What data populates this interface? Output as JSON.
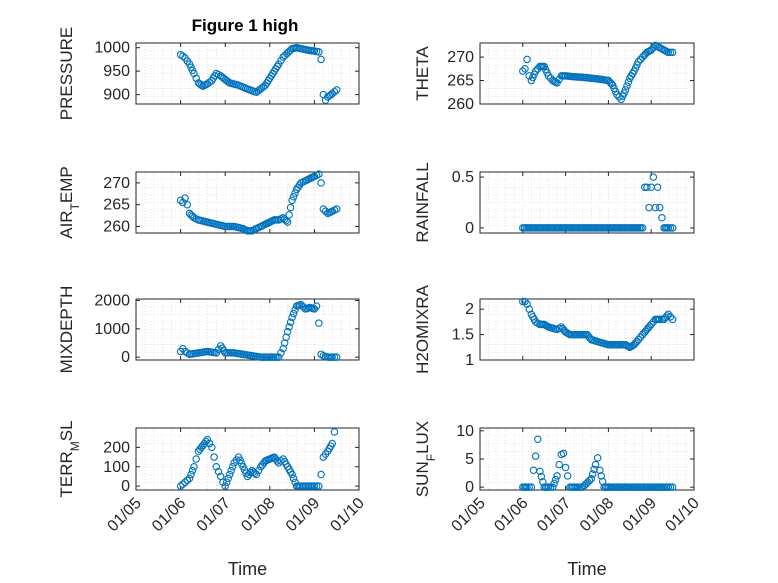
{
  "figure_title": "Figure 1 high",
  "chart_data": [
    {
      "type": "scatter",
      "ylabel": "PRESSURE",
      "xlim": [
        0,
        5
      ],
      "ylim": [
        880,
        1010
      ],
      "yticks": [
        900,
        950,
        1000
      ],
      "ytick_labels": [
        "900",
        "950",
        "1000"
      ],
      "show_xticks": false,
      "series": [
        {
          "x": [
            1.0,
            1.05,
            1.1,
            1.2,
            1.3,
            1.4,
            1.5,
            1.6,
            1.7,
            1.8,
            1.9,
            2.0,
            2.1,
            2.3,
            2.5,
            2.7,
            2.9,
            3.0,
            3.1,
            3.2,
            3.3,
            3.5,
            3.6,
            3.7,
            3.8,
            3.9,
            4.0,
            4.1,
            4.15,
            4.2,
            4.25,
            4.3,
            4.4,
            4.5
          ],
          "y": [
            985,
            982,
            978,
            965,
            945,
            925,
            918,
            923,
            930,
            945,
            940,
            932,
            925,
            920,
            912,
            905,
            920,
            935,
            950,
            965,
            980,
            998,
            1000,
            998,
            996,
            994,
            993,
            991,
            975,
            900,
            888,
            895,
            902,
            910
          ]
        }
      ]
    },
    {
      "type": "scatter",
      "ylabel": "THETA",
      "xlim": [
        0,
        5
      ],
      "ylim": [
        260,
        273
      ],
      "yticks": [
        260,
        265,
        270
      ],
      "ytick_labels": [
        "260",
        "265",
        "270"
      ],
      "show_xticks": false,
      "series": [
        {
          "x": [
            1.0,
            1.05,
            1.1,
            1.15,
            1.2,
            1.3,
            1.4,
            1.5,
            1.6,
            1.7,
            1.8,
            1.9,
            2.0,
            2.2,
            2.4,
            2.6,
            2.8,
            3.0,
            3.1,
            3.2,
            3.3,
            3.4,
            3.5,
            3.6,
            3.7,
            3.8,
            3.9,
            4.0,
            4.1,
            4.2,
            4.3,
            4.4,
            4.5
          ],
          "y": [
            267,
            267.5,
            269.5,
            266,
            265,
            267,
            268,
            268,
            266,
            265,
            264.5,
            266,
            266,
            265.8,
            265.7,
            265.5,
            265.3,
            265,
            264,
            262,
            261,
            263,
            265.5,
            267,
            269,
            270,
            271,
            271.5,
            272.5,
            272,
            271.5,
            271,
            271
          ]
        }
      ]
    },
    {
      "type": "scatter",
      "ylabel": "AIR_TEMP",
      "xlim": [
        0,
        5
      ],
      "ylim": [
        258.5,
        272.5
      ],
      "yticks": [
        260,
        265,
        270
      ],
      "ytick_labels": [
        "260",
        "265",
        "270"
      ],
      "show_xticks": false,
      "series": [
        {
          "x": [
            1.0,
            1.05,
            1.1,
            1.15,
            1.2,
            1.3,
            1.4,
            1.6,
            1.8,
            2.0,
            2.2,
            2.4,
            2.5,
            2.6,
            2.7,
            2.8,
            2.9,
            3.0,
            3.1,
            3.2,
            3.3,
            3.4,
            3.5,
            3.6,
            3.7,
            3.8,
            3.9,
            4.0,
            4.1,
            4.15,
            4.2,
            4.3,
            4.4,
            4.5
          ],
          "y": [
            266,
            265.5,
            266.5,
            265,
            263,
            262,
            261.5,
            261,
            260.5,
            260,
            260,
            259.5,
            259,
            259,
            259.5,
            260,
            260.5,
            261,
            261.5,
            261.5,
            262,
            261,
            266,
            268.5,
            270,
            270.5,
            271,
            271.5,
            272,
            270,
            264,
            263,
            263.5,
            264
          ]
        }
      ]
    },
    {
      "type": "scatter",
      "ylabel": "RAINFALL",
      "xlim": [
        0,
        5
      ],
      "ylim": [
        -0.05,
        0.55
      ],
      "yticks": [
        0,
        0.5
      ],
      "ytick_labels": [
        "0",
        "0.5"
      ],
      "show_xticks": false,
      "series": [
        {
          "x": [
            1.0,
            1.2,
            1.4,
            1.6,
            1.8,
            2.0,
            2.2,
            2.4,
            2.6,
            2.8,
            3.0,
            3.2,
            3.4,
            3.6,
            3.8,
            3.85,
            3.9,
            3.95,
            4.0,
            4.05,
            4.1,
            4.15,
            4.2,
            4.3,
            4.4,
            4.5
          ],
          "y": [
            0,
            0,
            0,
            0,
            0,
            0,
            0,
            0,
            0,
            0,
            0,
            0,
            0,
            0,
            0,
            0.4,
            0.4,
            0.2,
            0.4,
            0.5,
            0.2,
            0.4,
            0.2,
            0,
            0,
            0
          ]
        }
      ]
    },
    {
      "type": "scatter",
      "ylabel": "MIXDEPTH",
      "xlim": [
        0,
        5
      ],
      "ylim": [
        -100,
        2050
      ],
      "yticks": [
        0,
        1000,
        2000
      ],
      "ytick_labels": [
        "0",
        "1000",
        "2000"
      ],
      "show_xticks": false,
      "series": [
        {
          "x": [
            1.0,
            1.05,
            1.1,
            1.2,
            1.4,
            1.6,
            1.8,
            1.9,
            2.0,
            2.2,
            2.4,
            2.6,
            2.8,
            3.0,
            3.2,
            3.3,
            3.4,
            3.5,
            3.6,
            3.7,
            3.8,
            3.9,
            4.0,
            4.05,
            4.1,
            4.15,
            4.2,
            4.3,
            4.4,
            4.5
          ],
          "y": [
            200,
            300,
            200,
            100,
            150,
            200,
            150,
            400,
            150,
            150,
            100,
            50,
            0,
            0,
            0,
            300,
            900,
            1400,
            1800,
            1850,
            1700,
            1750,
            1700,
            1800,
            1200,
            100,
            50,
            0,
            0,
            0
          ]
        }
      ]
    },
    {
      "type": "scatter",
      "ylabel": "H2OMIXRA",
      "xlim": [
        0,
        5
      ],
      "ylim": [
        1,
        2.2
      ],
      "yticks": [
        1,
        1.5,
        2
      ],
      "ytick_labels": [
        "1",
        "1.5",
        "2"
      ],
      "show_xticks": false,
      "series": [
        {
          "x": [
            1.0,
            1.05,
            1.1,
            1.2,
            1.3,
            1.4,
            1.5,
            1.6,
            1.8,
            1.9,
            2.0,
            2.1,
            2.3,
            2.5,
            2.6,
            2.8,
            3.0,
            3.2,
            3.4,
            3.5,
            3.6,
            3.7,
            3.8,
            3.9,
            4.0,
            4.1,
            4.2,
            4.3,
            4.4,
            4.5
          ],
          "y": [
            2.15,
            2.15,
            2.1,
            1.9,
            1.75,
            1.7,
            1.7,
            1.65,
            1.6,
            1.65,
            1.55,
            1.5,
            1.5,
            1.5,
            1.4,
            1.35,
            1.3,
            1.3,
            1.3,
            1.25,
            1.3,
            1.4,
            1.5,
            1.6,
            1.7,
            1.8,
            1.8,
            1.8,
            1.9,
            1.8
          ]
        }
      ]
    },
    {
      "type": "scatter",
      "ylabel": "TERR_MSL",
      "xlim": [
        0,
        5
      ],
      "ylim": [
        -20,
        300
      ],
      "yticks": [
        0,
        100,
        200
      ],
      "ytick_labels": [
        "0",
        "100",
        "200"
      ],
      "show_xticks": true,
      "xticks": [
        0,
        1,
        2,
        3,
        4,
        5
      ],
      "xtick_labels": [
        "01/05",
        "01/06",
        "01/07",
        "01/08",
        "01/09",
        "01/10"
      ],
      "xlabel": "Time",
      "series": [
        {
          "x": [
            1.0,
            1.05,
            1.1,
            1.2,
            1.3,
            1.35,
            1.4,
            1.5,
            1.6,
            1.7,
            1.75,
            1.8,
            1.9,
            1.95,
            2.0,
            2.1,
            2.2,
            2.3,
            2.4,
            2.5,
            2.6,
            2.7,
            2.8,
            2.9,
            3.0,
            3.1,
            3.2,
            3.3,
            3.4,
            3.5,
            3.6,
            3.7,
            3.8,
            3.9,
            4.0,
            4.1,
            4.15,
            4.2,
            4.3,
            4.4,
            4.45
          ],
          "y": [
            0,
            10,
            20,
            40,
            100,
            140,
            180,
            210,
            240,
            200,
            150,
            100,
            50,
            20,
            0,
            60,
            120,
            150,
            100,
            50,
            80,
            60,
            100,
            130,
            140,
            150,
            120,
            140,
            100,
            60,
            0,
            0,
            0,
            0,
            0,
            0,
            60,
            150,
            180,
            220,
            280
          ]
        }
      ]
    },
    {
      "type": "scatter",
      "ylabel": "SUN_FLUX",
      "xlim": [
        0,
        5
      ],
      "ylim": [
        -0.5,
        10.5
      ],
      "yticks": [
        0,
        5,
        10
      ],
      "ytick_labels": [
        "0",
        "5",
        "10"
      ],
      "show_xticks": true,
      "xticks": [
        0,
        1,
        2,
        3,
        4,
        5
      ],
      "xtick_labels": [
        "01/05",
        "01/06",
        "01/07",
        "01/08",
        "01/09",
        "01/10"
      ],
      "xlabel": "Time",
      "series": [
        {
          "x": [
            1.0,
            1.1,
            1.2,
            1.25,
            1.3,
            1.35,
            1.4,
            1.5,
            1.6,
            1.7,
            1.8,
            1.85,
            1.9,
            1.95,
            2.0,
            2.05,
            2.1,
            2.2,
            2.4,
            2.6,
            2.7,
            2.75,
            2.8,
            2.9,
            3.0,
            3.2,
            3.4,
            3.6,
            3.8,
            4.0,
            4.2,
            4.4,
            4.5
          ],
          "y": [
            0,
            0,
            0,
            3,
            5.5,
            8.5,
            2.8,
            0,
            0,
            0,
            2,
            4,
            5.8,
            6,
            3.5,
            2,
            0,
            0,
            0,
            1.5,
            4,
            5.2,
            3,
            0,
            0,
            0,
            0,
            0,
            0,
            0,
            0,
            0,
            0
          ]
        }
      ]
    }
  ]
}
